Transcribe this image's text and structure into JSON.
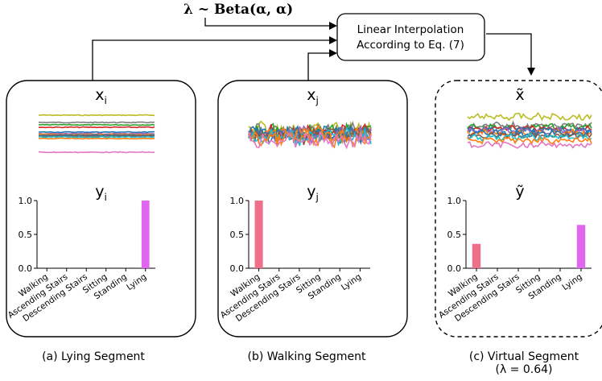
{
  "top": {
    "lambda_formula": "λ ~ Beta(α, α)",
    "interp_box_line1": "Linear Interpolation",
    "interp_box_line2": "According to Eq. (7)"
  },
  "panels": [
    {
      "id": "a",
      "x_label": "x",
      "x_sub": "i",
      "y_label": "y",
      "y_sub": "i",
      "caption": "(a) Lying Segment",
      "caption_line2": "",
      "border": "solid",
      "signal_kind": "flat",
      "bars": [
        0,
        0,
        0,
        0,
        0,
        1.0
      ]
    },
    {
      "id": "b",
      "x_label": "x",
      "x_sub": "j",
      "y_label": "y",
      "y_sub": "j",
      "caption": "(b) Walking Segment",
      "caption_line2": "",
      "border": "solid",
      "signal_kind": "noisy",
      "bars": [
        1.0,
        0,
        0,
        0,
        0,
        0
      ]
    },
    {
      "id": "c",
      "x_label": "x̃",
      "x_sub": "",
      "y_label": "ỹ",
      "y_sub": "",
      "caption": "(c) Virtual Segment",
      "caption_line2": "(λ = 0.64)",
      "border": "dashed",
      "signal_kind": "mixed",
      "bars": [
        0.36,
        0,
        0,
        0,
        0,
        0.64
      ]
    }
  ],
  "chart_data": [
    {
      "type": "bar",
      "categories": [
        "Walking",
        "Ascending Stairs",
        "Descending Stairs",
        "Sitting",
        "Standing",
        "Lying"
      ],
      "values": [
        0,
        0,
        0,
        0,
        0,
        1.0
      ],
      "ylim": [
        0,
        1.0
      ],
      "yticks": [
        "0.0",
        "0.5",
        "1.0"
      ]
    },
    {
      "type": "bar",
      "categories": [
        "Walking",
        "Ascending Stairs",
        "Descending Stairs",
        "Sitting",
        "Standing",
        "Lying"
      ],
      "values": [
        1.0,
        0,
        0,
        0,
        0,
        0
      ],
      "ylim": [
        0,
        1.0
      ],
      "yticks": [
        "0.0",
        "0.5",
        "1.0"
      ]
    },
    {
      "type": "bar",
      "categories": [
        "Walking",
        "Ascending Stairs",
        "Descending Stairs",
        "Sitting",
        "Standing",
        "Lying"
      ],
      "values": [
        0.36,
        0,
        0,
        0,
        0,
        0.64
      ],
      "ylim": [
        0,
        1.0
      ],
      "yticks": [
        "0.0",
        "0.5",
        "1.0"
      ]
    }
  ],
  "colors": {
    "walking_bar": "#f0708a",
    "lying_bar": "#e066f0",
    "signal_palette": [
      "#1f77b4",
      "#ff7f0e",
      "#2ca02c",
      "#d62728",
      "#9467bd",
      "#8c564b",
      "#e377c2",
      "#7f7f7f",
      "#bcbd22",
      "#17becf",
      "#1f77b4",
      "#ff7f0e"
    ]
  }
}
